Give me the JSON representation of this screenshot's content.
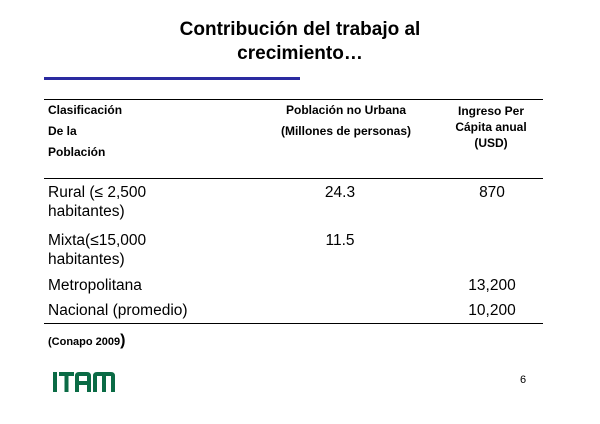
{
  "slide": {
    "title_line1": "Contribución del trabajo al",
    "title_line2": "crecimiento…",
    "accent_color": "#2a2aa0",
    "page_number": "6"
  },
  "table": {
    "headers": {
      "col1": [
        "Clasificación",
        "De la",
        "Población"
      ],
      "col2": [
        "Población no Urbana",
        "(Millones de personas)"
      ],
      "col3": [
        "Ingreso Per",
        "Cápita anual",
        "(USD)"
      ]
    },
    "rows": [
      {
        "clasificacion": [
          "Rural (≤ 2,500",
          "habitantes)"
        ],
        "poblacion": "24.3",
        "ingreso": "870"
      },
      {
        "clasificacion": [
          "Mixta(≤15,000",
          "habitantes)"
        ],
        "poblacion": "11.5",
        "ingreso": ""
      },
      {
        "clasificacion": [
          "Metropolitana"
        ],
        "poblacion": "",
        "ingreso": "13,200"
      },
      {
        "clasificacion": [
          "Nacional (promedio)"
        ],
        "poblacion": "",
        "ingreso": "10,200"
      }
    ]
  },
  "source": {
    "text": "(Conapo 2009",
    "close_paren": ")"
  },
  "logo": {
    "text": "ITAM",
    "color": "#0a6b45"
  }
}
